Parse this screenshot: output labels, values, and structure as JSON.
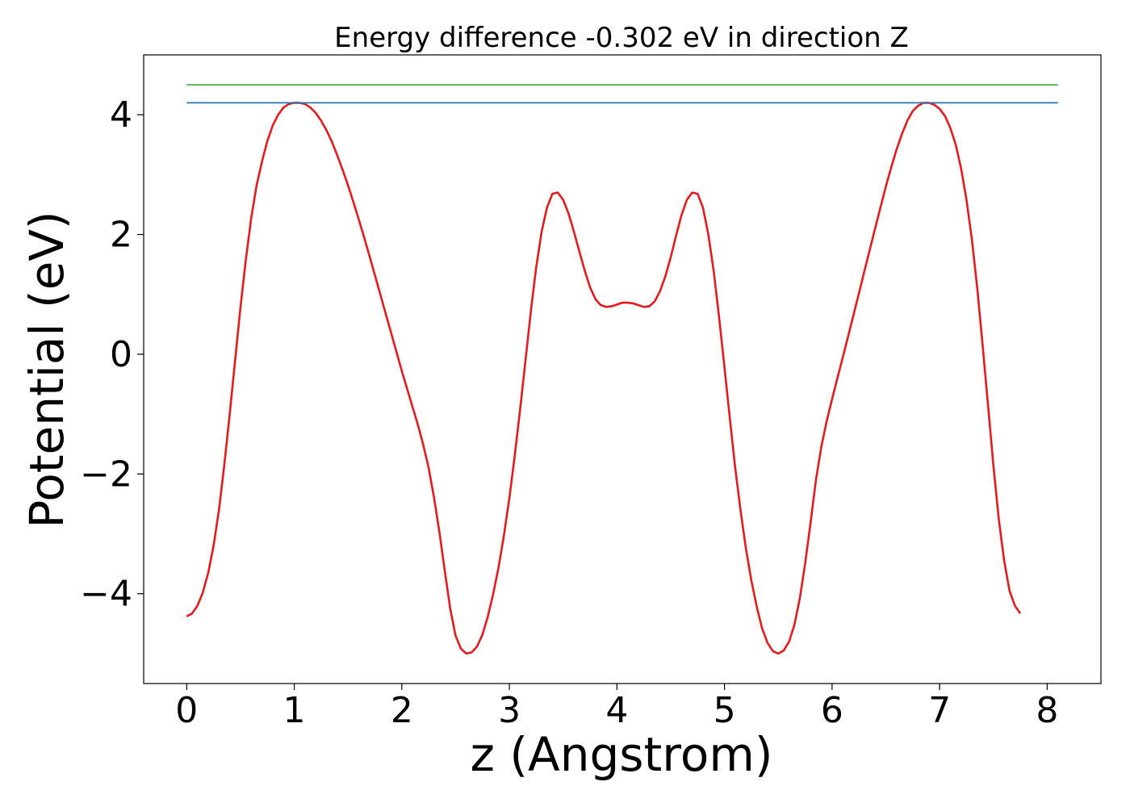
{
  "chart_data": {
    "type": "line",
    "title": "Energy difference -0.302 eV in direction Z",
    "xlabel": "z (Angstrom)",
    "ylabel": "Potential (eV)",
    "xlim": [
      -0.4,
      8.5
    ],
    "ylim": [
      -5.5,
      5.0
    ],
    "grid": false,
    "x_ticks": [
      0,
      1,
      2,
      3,
      4,
      5,
      6,
      7,
      8
    ],
    "x_tick_labels": [
      "0",
      "1",
      "2",
      "3",
      "4",
      "5",
      "6",
      "7",
      "8"
    ],
    "y_ticks": [
      -4,
      -2,
      0,
      2,
      4
    ],
    "y_tick_labels": [
      "−4",
      "−2",
      "0",
      "2",
      "4"
    ],
    "series": [
      {
        "color": "#e41a1c",
        "points": [
          [
            0.0,
            -4.38
          ],
          [
            0.05,
            -4.33
          ],
          [
            0.1,
            -4.2
          ],
          [
            0.15,
            -3.98
          ],
          [
            0.2,
            -3.65
          ],
          [
            0.25,
            -3.2
          ],
          [
            0.3,
            -2.6
          ],
          [
            0.35,
            -1.85
          ],
          [
            0.4,
            -1.0
          ],
          [
            0.45,
            -0.1
          ],
          [
            0.5,
            0.78
          ],
          [
            0.55,
            1.58
          ],
          [
            0.6,
            2.28
          ],
          [
            0.65,
            2.82
          ],
          [
            0.7,
            3.22
          ],
          [
            0.75,
            3.56
          ],
          [
            0.8,
            3.82
          ],
          [
            0.85,
            4.0
          ],
          [
            0.9,
            4.12
          ],
          [
            0.95,
            4.18
          ],
          [
            1.0,
            4.2
          ],
          [
            1.05,
            4.2
          ],
          [
            1.1,
            4.18
          ],
          [
            1.15,
            4.12
          ],
          [
            1.2,
            4.03
          ],
          [
            1.25,
            3.9
          ],
          [
            1.3,
            3.74
          ],
          [
            1.35,
            3.55
          ],
          [
            1.4,
            3.32
          ],
          [
            1.45,
            3.08
          ],
          [
            1.5,
            2.82
          ],
          [
            1.55,
            2.54
          ],
          [
            1.6,
            2.25
          ],
          [
            1.65,
            1.95
          ],
          [
            1.7,
            1.64
          ],
          [
            1.75,
            1.32
          ],
          [
            1.8,
            1.0
          ],
          [
            1.85,
            0.68
          ],
          [
            1.9,
            0.36
          ],
          [
            1.95,
            0.04
          ],
          [
            2.0,
            -0.28
          ],
          [
            2.05,
            -0.58
          ],
          [
            2.1,
            -0.88
          ],
          [
            2.15,
            -1.18
          ],
          [
            2.2,
            -1.52
          ],
          [
            2.25,
            -1.9
          ],
          [
            2.3,
            -2.4
          ],
          [
            2.35,
            -2.98
          ],
          [
            2.4,
            -3.62
          ],
          [
            2.45,
            -4.25
          ],
          [
            2.5,
            -4.7
          ],
          [
            2.55,
            -4.92
          ],
          [
            2.6,
            -5.0
          ],
          [
            2.65,
            -4.98
          ],
          [
            2.7,
            -4.88
          ],
          [
            2.75,
            -4.68
          ],
          [
            2.8,
            -4.38
          ],
          [
            2.85,
            -4.0
          ],
          [
            2.9,
            -3.55
          ],
          [
            2.95,
            -3.02
          ],
          [
            3.0,
            -2.4
          ],
          [
            3.05,
            -1.7
          ],
          [
            3.1,
            -0.92
          ],
          [
            3.15,
            -0.1
          ],
          [
            3.2,
            0.72
          ],
          [
            3.25,
            1.46
          ],
          [
            3.3,
            2.05
          ],
          [
            3.35,
            2.45
          ],
          [
            3.4,
            2.68
          ],
          [
            3.45,
            2.7
          ],
          [
            3.5,
            2.58
          ],
          [
            3.55,
            2.35
          ],
          [
            3.6,
            2.05
          ],
          [
            3.65,
            1.72
          ],
          [
            3.7,
            1.4
          ],
          [
            3.75,
            1.12
          ],
          [
            3.8,
            0.92
          ],
          [
            3.85,
            0.82
          ],
          [
            3.9,
            0.79
          ],
          [
            3.95,
            0.8
          ],
          [
            4.0,
            0.83
          ],
          [
            4.05,
            0.86
          ],
          [
            4.1,
            0.86
          ],
          [
            4.15,
            0.85
          ],
          [
            4.2,
            0.82
          ],
          [
            4.25,
            0.79
          ],
          [
            4.3,
            0.8
          ],
          [
            4.35,
            0.88
          ],
          [
            4.4,
            1.05
          ],
          [
            4.45,
            1.3
          ],
          [
            4.5,
            1.62
          ],
          [
            4.55,
            1.98
          ],
          [
            4.6,
            2.32
          ],
          [
            4.65,
            2.58
          ],
          [
            4.7,
            2.7
          ],
          [
            4.75,
            2.68
          ],
          [
            4.8,
            2.45
          ],
          [
            4.85,
            2.0
          ],
          [
            4.9,
            1.38
          ],
          [
            4.95,
            0.62
          ],
          [
            5.0,
            -0.22
          ],
          [
            5.05,
            -1.08
          ],
          [
            5.1,
            -1.9
          ],
          [
            5.15,
            -2.62
          ],
          [
            5.2,
            -3.25
          ],
          [
            5.25,
            -3.78
          ],
          [
            5.3,
            -4.22
          ],
          [
            5.35,
            -4.58
          ],
          [
            5.4,
            -4.82
          ],
          [
            5.45,
            -4.96
          ],
          [
            5.5,
            -5.0
          ],
          [
            5.55,
            -4.95
          ],
          [
            5.6,
            -4.8
          ],
          [
            5.65,
            -4.52
          ],
          [
            5.7,
            -4.08
          ],
          [
            5.75,
            -3.5
          ],
          [
            5.8,
            -2.82
          ],
          [
            5.85,
            -2.1
          ],
          [
            5.9,
            -1.55
          ],
          [
            5.95,
            -1.12
          ],
          [
            6.0,
            -0.75
          ],
          [
            6.05,
            -0.4
          ],
          [
            6.1,
            -0.05
          ],
          [
            6.15,
            0.3
          ],
          [
            6.2,
            0.66
          ],
          [
            6.25,
            1.02
          ],
          [
            6.3,
            1.38
          ],
          [
            6.35,
            1.74
          ],
          [
            6.4,
            2.1
          ],
          [
            6.45,
            2.45
          ],
          [
            6.5,
            2.8
          ],
          [
            6.55,
            3.12
          ],
          [
            6.6,
            3.42
          ],
          [
            6.65,
            3.68
          ],
          [
            6.7,
            3.9
          ],
          [
            6.75,
            4.06
          ],
          [
            6.8,
            4.15
          ],
          [
            6.85,
            4.2
          ],
          [
            6.9,
            4.2
          ],
          [
            6.95,
            4.17
          ],
          [
            7.0,
            4.1
          ],
          [
            7.05,
            3.98
          ],
          [
            7.1,
            3.78
          ],
          [
            7.15,
            3.5
          ],
          [
            7.2,
            3.1
          ],
          [
            7.25,
            2.58
          ],
          [
            7.3,
            1.92
          ],
          [
            7.35,
            1.1
          ],
          [
            7.4,
            0.15
          ],
          [
            7.45,
            -0.85
          ],
          [
            7.5,
            -1.85
          ],
          [
            7.55,
            -2.75
          ],
          [
            7.6,
            -3.45
          ],
          [
            7.65,
            -3.95
          ],
          [
            7.7,
            -4.2
          ],
          [
            7.75,
            -4.33
          ]
        ]
      },
      {
        "color": "#1f77b4",
        "points": [
          [
            0.0,
            4.2
          ],
          [
            8.1,
            4.2
          ]
        ]
      },
      {
        "color": "#4daf4a",
        "points": [
          [
            0.0,
            4.5
          ],
          [
            8.1,
            4.5
          ]
        ]
      }
    ]
  }
}
